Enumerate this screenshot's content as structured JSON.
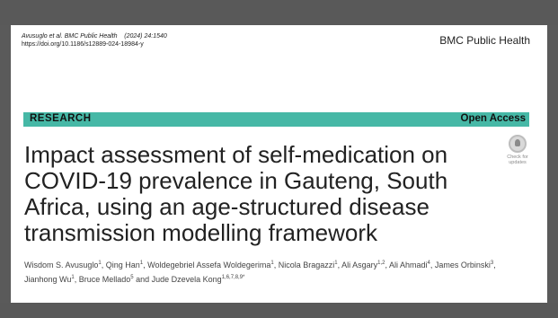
{
  "citation": {
    "authors_short": "Avusuglo et al.",
    "journal_abbrev": "BMC Public Health",
    "year_volume": "(2024) 24:1540",
    "doi": "https://doi.org/10.1186/s12889-024-18984-y"
  },
  "journal_name": "BMC Public Health",
  "article_type": "RESEARCH",
  "access": "Open Access",
  "check_updates": "Check for updates",
  "title": "Impact assessment of self-medication on COVID-19 prevalence in Gauteng, South Africa, using an age-structured disease transmission modelling framework",
  "authors": [
    {
      "name": "Wisdom S. Avusuglo",
      "sup": "1",
      "sep": ", "
    },
    {
      "name": "Qing Han",
      "sup": "1",
      "sep": ", "
    },
    {
      "name": "Woldegebriel Assefa Woldegerima",
      "sup": "1",
      "sep": ", "
    },
    {
      "name": "Nicola Bragazzi",
      "sup": "1",
      "sep": ", "
    },
    {
      "name": "Ali Asgary",
      "sup": "1,2",
      "sep": ", "
    },
    {
      "name": "Ali Ahmadi",
      "sup": "4",
      "sep": ", "
    },
    {
      "name": "James Orbinski",
      "sup": "3",
      "sep": ", "
    },
    {
      "name": "Jianhong Wu",
      "sup": "1",
      "sep": ", "
    },
    {
      "name": "Bruce Mellado",
      "sup": "5",
      "sep": " and "
    },
    {
      "name": "Jude Dzevela Kong",
      "sup": "1,6,7,8,9*",
      "sep": ""
    }
  ],
  "colors": {
    "band": "#46b8a6",
    "frame": "#595959"
  }
}
